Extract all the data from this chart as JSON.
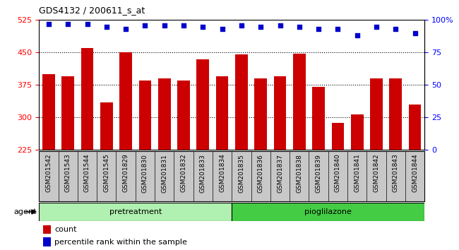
{
  "title": "GDS4132 / 200611_s_at",
  "categories": [
    "GSM201542",
    "GSM201543",
    "GSM201544",
    "GSM201545",
    "GSM201829",
    "GSM201830",
    "GSM201831",
    "GSM201832",
    "GSM201833",
    "GSM201834",
    "GSM201835",
    "GSM201836",
    "GSM201837",
    "GSM201838",
    "GSM201839",
    "GSM201840",
    "GSM201841",
    "GSM201842",
    "GSM201843",
    "GSM201844"
  ],
  "bar_values": [
    400,
    395,
    460,
    335,
    450,
    385,
    390,
    385,
    435,
    395,
    445,
    390,
    395,
    447,
    370,
    288,
    307,
    390,
    390,
    330
  ],
  "percentile_values": [
    97,
    97,
    97,
    95,
    93,
    96,
    96,
    96,
    95,
    93,
    96,
    95,
    96,
    95,
    93,
    93,
    88,
    95,
    93,
    90
  ],
  "bar_color": "#cc0000",
  "percentile_color": "#0000cc",
  "ylim_left": [
    225,
    525
  ],
  "ylim_right": [
    0,
    100
  ],
  "yticks_left": [
    225,
    300,
    375,
    450,
    525
  ],
  "yticks_right": [
    0,
    25,
    50,
    75,
    100
  ],
  "group_labels": [
    "pretreatment",
    "pioglilazone"
  ],
  "group_split": 10,
  "agent_label": "agent",
  "legend_count": "count",
  "legend_percentile": "percentile rank within the sample",
  "light_green": "#b0f0b0",
  "dark_green": "#44cc44",
  "gray_bg": "#c8c8c8"
}
